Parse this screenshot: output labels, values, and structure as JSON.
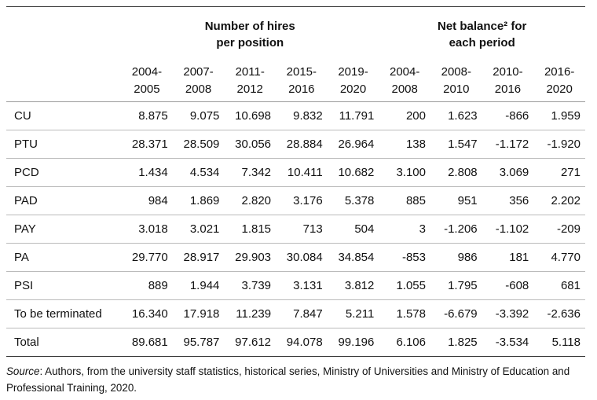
{
  "table": {
    "groups": [
      "Number of hires per position",
      "Net balance² for each period"
    ],
    "columns": [
      {
        "top": "2004-",
        "bottom": "2005"
      },
      {
        "top": "2007-",
        "bottom": "2008"
      },
      {
        "top": "2011-",
        "bottom": "2012"
      },
      {
        "top": "2015-",
        "bottom": "2016"
      },
      {
        "top": "2019-",
        "bottom": "2020"
      },
      {
        "top": "2004-",
        "bottom": "2008"
      },
      {
        "top": "2008-",
        "bottom": "2010"
      },
      {
        "top": "2010-",
        "bottom": "2016"
      },
      {
        "top": "2016-",
        "bottom": "2020"
      }
    ],
    "rows": [
      {
        "label": "CU",
        "values": [
          "8.875",
          "9.075",
          "10.698",
          "9.832",
          "11.791",
          "200",
          "1.623",
          "-866",
          "1.959"
        ]
      },
      {
        "label": "PTU",
        "values": [
          "28.371",
          "28.509",
          "30.056",
          "28.884",
          "26.964",
          "138",
          "1.547",
          "-1.172",
          "-1.920"
        ]
      },
      {
        "label": "PCD",
        "values": [
          "1.434",
          "4.534",
          "7.342",
          "10.411",
          "10.682",
          "3.100",
          "2.808",
          "3.069",
          "271"
        ]
      },
      {
        "label": "PAD",
        "values": [
          "984",
          "1.869",
          "2.820",
          "3.176",
          "5.378",
          "885",
          "951",
          "356",
          "2.202"
        ]
      },
      {
        "label": "PAY",
        "values": [
          "3.018",
          "3.021",
          "1.815",
          "713",
          "504",
          "3",
          "-1.206",
          "-1.102",
          "-209"
        ]
      },
      {
        "label": "PA",
        "values": [
          "29.770",
          "28.917",
          "29.903",
          "30.084",
          "34.854",
          "-853",
          "986",
          "181",
          "4.770"
        ]
      },
      {
        "label": "PSI",
        "values": [
          "889",
          "1.944",
          "3.739",
          "3.131",
          "3.812",
          "1.055",
          "1.795",
          "-608",
          "681"
        ]
      },
      {
        "label": "To be terminated",
        "values": [
          "16.340",
          "17.918",
          "11.239",
          "7.847",
          "5.211",
          "1.578",
          "-6.679",
          "-3.392",
          "-2.636"
        ]
      },
      {
        "label": "Total",
        "values": [
          "89.681",
          "95.787",
          "97.612",
          "94.078",
          "99.196",
          "6.106",
          "1.825",
          "-3.534",
          "5.118"
        ]
      }
    ]
  },
  "source_label": "Source",
  "source_text": ": Authors, from the university staff statistics, historical series, Ministry of Universities and Ministry of Education and Professional Training, 2020."
}
